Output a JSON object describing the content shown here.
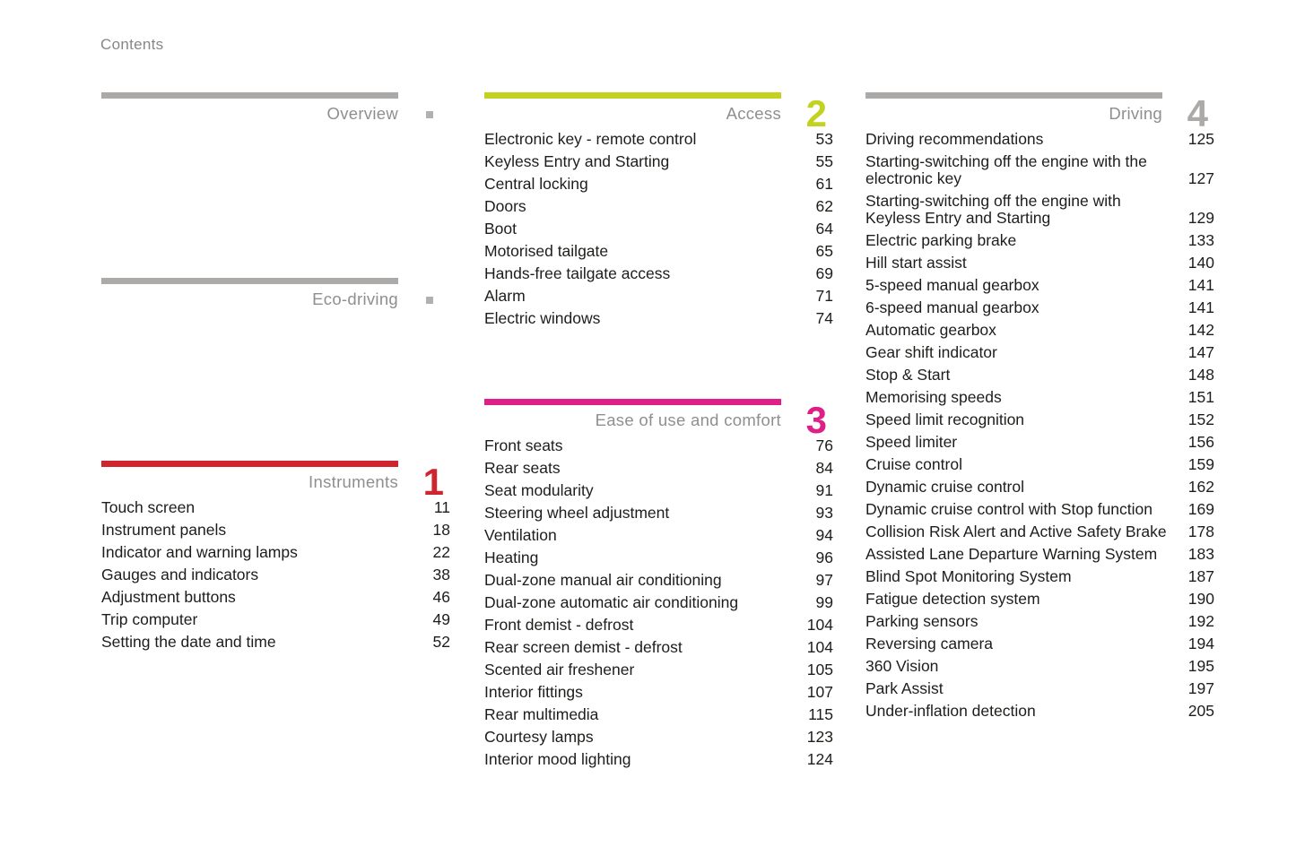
{
  "page": {
    "heading": "Contents"
  },
  "colors": {
    "gray_bar": "#abaaa8",
    "red": "#d0252f",
    "green": "#c3d21f",
    "magenta": "#de1f87",
    "marker_square": "#b2b1af",
    "section_title_text": "#8f8f8f",
    "item_text": "#1d1d1b"
  },
  "sections": [
    {
      "title": "Overview",
      "number": "",
      "marker": "square",
      "accent": "#abaaa8",
      "items": []
    },
    {
      "title": "Eco-driving",
      "number": "",
      "marker": "square",
      "accent": "#abaaa8",
      "items": []
    },
    {
      "title": "Instruments",
      "number": "1",
      "marker": "",
      "accent": "#d0252f",
      "items": [
        {
          "label": "Touch screen",
          "page": "11"
        },
        {
          "label": "Instrument panels",
          "page": "18"
        },
        {
          "label": "Indicator and warning lamps",
          "page": "22"
        },
        {
          "label": "Gauges and indicators",
          "page": "38"
        },
        {
          "label": "Adjustment buttons",
          "page": "46"
        },
        {
          "label": "Trip computer",
          "page": "49"
        },
        {
          "label": "Setting the date and time",
          "page": "52"
        }
      ]
    },
    {
      "title": "Access",
      "number": "2",
      "marker": "",
      "accent": "#c3d21f",
      "items": [
        {
          "label": "Electronic key - remote control",
          "page": "53"
        },
        {
          "label": "Keyless Entry and Starting",
          "page": "55"
        },
        {
          "label": "Central locking",
          "page": "61"
        },
        {
          "label": "Doors",
          "page": "62"
        },
        {
          "label": "Boot",
          "page": "64"
        },
        {
          "label": "Motorised tailgate",
          "page": "65"
        },
        {
          "label": "Hands-free tailgate access",
          "page": "69"
        },
        {
          "label": "Alarm",
          "page": "71"
        },
        {
          "label": "Electric windows",
          "page": "74"
        }
      ]
    },
    {
      "title": "Ease of use and comfort",
      "number": "3",
      "marker": "",
      "accent": "#de1f87",
      "items": [
        {
          "label": "Front seats",
          "page": "76"
        },
        {
          "label": "Rear seats",
          "page": "84"
        },
        {
          "label": "Seat modularity",
          "page": "91"
        },
        {
          "label": "Steering wheel adjustment",
          "page": "93"
        },
        {
          "label": "Ventilation",
          "page": "94"
        },
        {
          "label": "Heating",
          "page": "96"
        },
        {
          "label": "Dual-zone manual air conditioning",
          "page": "97"
        },
        {
          "label": "Dual-zone automatic air conditioning",
          "page": "99"
        },
        {
          "label": "Front demist - defrost",
          "page": "104"
        },
        {
          "label": "Rear screen demist - defrost",
          "page": "104"
        },
        {
          "label": "Scented air freshener",
          "page": "105"
        },
        {
          "label": "Interior fittings",
          "page": "107"
        },
        {
          "label": "Rear multimedia",
          "page": "115"
        },
        {
          "label": "Courtesy lamps",
          "page": "123"
        },
        {
          "label": "Interior mood lighting",
          "page": "124"
        }
      ]
    },
    {
      "title": "Driving",
      "number": "4",
      "marker": "",
      "accent": "#abaaa8",
      "items": [
        {
          "label": "Driving recommendations",
          "page": "125"
        },
        {
          "label": "Starting-switching off the engine with the electronic key",
          "page": "127"
        },
        {
          "label": "Starting-switching off the engine with Keyless Entry and Starting",
          "page": "129"
        },
        {
          "label": "Electric parking brake",
          "page": "133"
        },
        {
          "label": "Hill start assist",
          "page": "140"
        },
        {
          "label": "5-speed manual gearbox",
          "page": "141"
        },
        {
          "label": "6-speed manual gearbox",
          "page": "141"
        },
        {
          "label": "Automatic gearbox",
          "page": "142"
        },
        {
          "label": "Gear shift indicator",
          "page": "147"
        },
        {
          "label": "Stop & Start",
          "page": "148"
        },
        {
          "label": "Memorising speeds",
          "page": "151"
        },
        {
          "label": "Speed limit recognition",
          "page": "152"
        },
        {
          "label": "Speed limiter",
          "page": "156"
        },
        {
          "label": "Cruise control",
          "page": "159"
        },
        {
          "label": "Dynamic cruise control",
          "page": "162"
        },
        {
          "label": "Dynamic cruise control with Stop function",
          "page": "169"
        },
        {
          "label": "Collision Risk Alert and Active Safety Brake",
          "page": "178"
        },
        {
          "label": "Assisted Lane Departure Warning System",
          "page": "183"
        },
        {
          "label": "Blind Spot Monitoring System",
          "page": "187"
        },
        {
          "label": "Fatigue detection system",
          "page": "190"
        },
        {
          "label": "Parking sensors",
          "page": "192"
        },
        {
          "label": "Reversing camera",
          "page": "194"
        },
        {
          "label": "360 Vision",
          "page": "195"
        },
        {
          "label": "Park Assist",
          "page": "197"
        },
        {
          "label": "Under-inflation detection",
          "page": "205"
        }
      ]
    }
  ]
}
